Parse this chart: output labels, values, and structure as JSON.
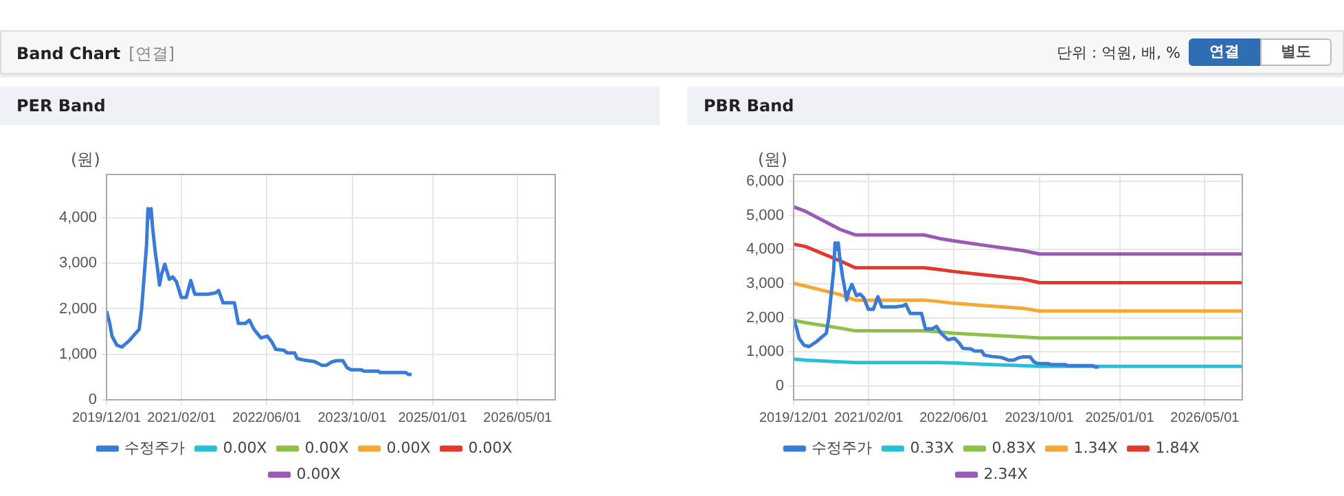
{
  "chart_data": [
    {
      "type": "other",
      "title": "Band Chart",
      "annotations": [
        "[연결]",
        "단위 : 억원, 배, %",
        "연결",
        "별도"
      ]
    },
    {
      "type": "line",
      "title": "PER Band",
      "ylabel": "(원)",
      "grid": true,
      "legend": "bottom",
      "marker": "none",
      "line_style": "solid",
      "xlim": [
        "2019-12-01",
        "2026-12-01"
      ],
      "xticks": [
        {
          "value": "2019-12-01",
          "label": "2019/12/01"
        },
        {
          "value": "2021-02-01",
          "label": "2021/02/01"
        },
        {
          "value": "2022-06-01",
          "label": "2022/06/01"
        },
        {
          "value": "2023-10-01",
          "label": "2023/10/01"
        },
        {
          "value": "2025-01-01",
          "label": "2025/01/01"
        },
        {
          "value": "2026-05-01",
          "label": "2026/05/01"
        }
      ],
      "ylim": [
        0,
        4950
      ],
      "yticks": [
        0,
        {
          "value": 1000,
          "label": "1,000"
        },
        {
          "value": 2000,
          "label": "2,000"
        },
        {
          "value": 3000,
          "label": "3,000"
        },
        {
          "value": 4000,
          "label": "4,000"
        }
      ],
      "series": [
        {
          "name": "수정주가",
          "color": "#3a7bd5",
          "x": [
            "2019-12-01",
            "2019-12-18",
            "2020-01-01",
            "2020-01-29",
            "2020-02-27",
            "2020-04-08",
            "2020-06-04",
            "2020-06-18",
            "2020-07-04",
            "2020-07-16",
            "2020-07-24",
            "2020-08-05",
            "2020-08-11",
            "2020-08-19",
            "2020-09-05",
            "2020-09-16",
            "2020-09-28",
            "2020-10-09",
            "2020-10-28",
            "2020-11-23",
            "2020-12-12",
            "2021-01-02",
            "2021-01-30",
            "2021-02-27",
            "2021-03-25",
            "2021-04-17",
            "2021-07-02",
            "2021-08-14",
            "2021-08-31",
            "2021-09-25",
            "2021-11-29",
            "2021-12-21",
            "2022-01-30",
            "2022-02-22",
            "2022-03-20",
            "2022-04-29",
            "2022-06-05",
            "2022-07-02",
            "2022-07-22",
            "2022-09-06",
            "2022-09-26",
            "2022-11-07",
            "2022-11-21",
            "2023-01-02",
            "2023-02-28",
            "2023-04-10",
            "2023-05-08",
            "2023-06-05",
            "2023-07-03",
            "2023-08-09",
            "2023-09-01",
            "2023-09-24",
            "2023-11-22",
            "2023-12-06",
            "2024-02-28",
            "2024-03-07",
            "2024-08-01",
            "2024-08-15",
            "2024-09-04"
          ],
          "values": [
            1950,
            1700,
            1400,
            1200,
            1160,
            1300,
            1550,
            2000,
            2800,
            3400,
            4200,
            4000,
            4200,
            3800,
            3200,
            2900,
            2520,
            2750,
            2980,
            2650,
            2700,
            2600,
            2250,
            2250,
            2620,
            2320,
            2320,
            2350,
            2400,
            2130,
            2130,
            1680,
            1680,
            1750,
            1550,
            1360,
            1400,
            1260,
            1110,
            1090,
            1030,
            1030,
            910,
            870,
            840,
            760,
            760,
            830,
            860,
            860,
            710,
            660,
            660,
            630,
            630,
            600,
            600,
            560,
            560
          ]
        },
        {
          "name": "0.00X",
          "color": "#28c0d8"
        },
        {
          "name": "0.00X",
          "color": "#8dc04a"
        },
        {
          "name": "0.00X",
          "color": "#f5a833"
        },
        {
          "name": "0.00X",
          "color": "#e03a2e"
        },
        {
          "name": "0.00X",
          "color": "#9b59b6"
        }
      ]
    },
    {
      "type": "line",
      "title": "PBR Band",
      "ylabel": "(원)",
      "grid": true,
      "legend": "bottom",
      "marker": "none",
      "line_style": "solid",
      "xlim": [
        "2019-12-01",
        "2026-12-01"
      ],
      "xticks": [
        {
          "value": "2019-12-01",
          "label": "2019/12/01"
        },
        {
          "value": "2021-02-01",
          "label": "2021/02/01"
        },
        {
          "value": "2022-06-01",
          "label": "2022/06/01"
        },
        {
          "value": "2023-10-01",
          "label": "2023/10/01"
        },
        {
          "value": "2025-01-01",
          "label": "2025/01/01"
        },
        {
          "value": "2026-05-01",
          "label": "2026/05/01"
        }
      ],
      "ylim": [
        -400,
        6200
      ],
      "yticks": [
        0,
        {
          "value": 1000,
          "label": "1,000"
        },
        {
          "value": 2000,
          "label": "2,000"
        },
        {
          "value": 3000,
          "label": "3,000"
        },
        {
          "value": 4000,
          "label": "4,000"
        },
        {
          "value": 5000,
          "label": "5,000"
        },
        {
          "value": 6000,
          "label": "6,000"
        }
      ],
      "series": [
        {
          "name": "수정주가",
          "color": "#3a7bd5",
          "x": [
            "2019-12-01",
            "2019-12-18",
            "2020-01-01",
            "2020-01-29",
            "2020-02-27",
            "2020-04-08",
            "2020-06-04",
            "2020-06-18",
            "2020-07-04",
            "2020-07-16",
            "2020-07-24",
            "2020-08-05",
            "2020-08-11",
            "2020-08-19",
            "2020-09-05",
            "2020-09-16",
            "2020-09-28",
            "2020-10-09",
            "2020-10-28",
            "2020-11-23",
            "2020-12-12",
            "2021-01-02",
            "2021-01-30",
            "2021-02-27",
            "2021-03-25",
            "2021-04-17",
            "2021-07-02",
            "2021-08-14",
            "2021-08-31",
            "2021-09-25",
            "2021-11-29",
            "2021-12-21",
            "2022-01-30",
            "2022-02-22",
            "2022-03-20",
            "2022-04-29",
            "2022-06-05",
            "2022-07-02",
            "2022-07-22",
            "2022-09-06",
            "2022-09-26",
            "2022-11-07",
            "2022-11-21",
            "2023-01-02",
            "2023-02-28",
            "2023-04-10",
            "2023-05-08",
            "2023-06-05",
            "2023-07-03",
            "2023-08-09",
            "2023-09-01",
            "2023-09-24",
            "2023-11-22",
            "2023-12-06",
            "2024-02-28",
            "2024-03-07",
            "2024-08-01",
            "2024-08-15",
            "2024-09-04"
          ],
          "values": [
            1950,
            1700,
            1400,
            1200,
            1160,
            1300,
            1550,
            2000,
            2800,
            3400,
            4200,
            4000,
            4200,
            3800,
            3200,
            2900,
            2520,
            2750,
            2980,
            2650,
            2700,
            2600,
            2250,
            2250,
            2620,
            2320,
            2320,
            2350,
            2400,
            2130,
            2130,
            1680,
            1680,
            1750,
            1550,
            1360,
            1400,
            1260,
            1110,
            1090,
            1030,
            1030,
            910,
            870,
            840,
            760,
            760,
            830,
            860,
            860,
            710,
            660,
            660,
            630,
            630,
            600,
            600,
            560,
            560
          ]
        },
        {
          "name": "0.33X",
          "color": "#28c0d8",
          "x": [
            "2019-12-01",
            "2020-02-07",
            "2020-08-22",
            "2020-11-16",
            "2021-12-13",
            "2022-03-07",
            "2022-05-28",
            "2022-11-16",
            "2023-06-28",
            "2023-10-04",
            "2026-12-01"
          ],
          "values": [
            790,
            760,
            710,
            690,
            690,
            690,
            680,
            640,
            600,
            580,
            580
          ]
        },
        {
          "name": "0.83X",
          "color": "#8dc04a",
          "x": [
            "2019-12-01",
            "2020-02-07",
            "2020-08-22",
            "2020-11-16",
            "2021-12-13",
            "2022-03-07",
            "2022-05-28",
            "2022-11-16",
            "2023-06-28",
            "2023-10-04",
            "2026-12-01"
          ],
          "values": [
            1930,
            1860,
            1700,
            1620,
            1620,
            1590,
            1550,
            1500,
            1440,
            1410,
            1410
          ]
        },
        {
          "name": "1.34X",
          "color": "#f5a833",
          "x": [
            "2019-12-01",
            "2020-02-07",
            "2020-08-22",
            "2020-11-16",
            "2021-12-13",
            "2022-03-07",
            "2022-05-28",
            "2022-11-16",
            "2023-06-28",
            "2023-10-04",
            "2026-12-01"
          ],
          "values": [
            3010,
            2930,
            2680,
            2520,
            2520,
            2480,
            2430,
            2360,
            2280,
            2200,
            2200
          ]
        },
        {
          "name": "1.84X",
          "color": "#e03a2e",
          "x": [
            "2019-12-01",
            "2020-02-07",
            "2020-08-22",
            "2020-11-16",
            "2021-12-13",
            "2022-03-07",
            "2022-05-28",
            "2022-11-16",
            "2023-06-28",
            "2023-10-04",
            "2026-12-01"
          ],
          "values": [
            4160,
            4090,
            3670,
            3470,
            3470,
            3420,
            3360,
            3260,
            3140,
            3030,
            3030
          ]
        },
        {
          "name": "2.34X",
          "color": "#9b59b6",
          "x": [
            "2019-12-01",
            "2020-02-07",
            "2020-08-22",
            "2020-11-16",
            "2021-12-13",
            "2022-03-07",
            "2022-05-28",
            "2022-11-16",
            "2023-06-28",
            "2023-10-04",
            "2026-12-01"
          ],
          "values": [
            5250,
            5120,
            4590,
            4430,
            4430,
            4330,
            4260,
            4130,
            3970,
            3870,
            3870
          ]
        }
      ]
    }
  ]
}
